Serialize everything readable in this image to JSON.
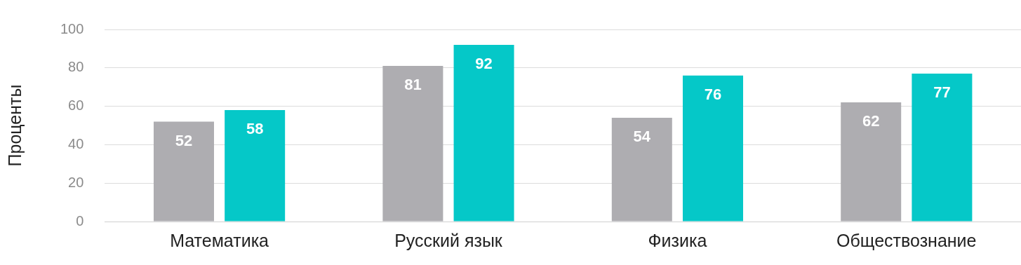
{
  "chart_data": {
    "type": "bar",
    "ylabel": "Проценты",
    "categories": [
      "Математика",
      "Русский язык",
      "Физика",
      "Обществознание"
    ],
    "series": [
      {
        "color": "#aeadb1",
        "values": [
          52,
          81,
          54,
          62
        ]
      },
      {
        "color": "#05c8c8",
        "values": [
          58,
          92,
          76,
          77
        ]
      }
    ],
    "ylim": [
      0,
      100
    ],
    "yticks": [
      0,
      20,
      40,
      60,
      80,
      100
    ],
    "grid": "y",
    "legend": false,
    "data_labels": true
  }
}
